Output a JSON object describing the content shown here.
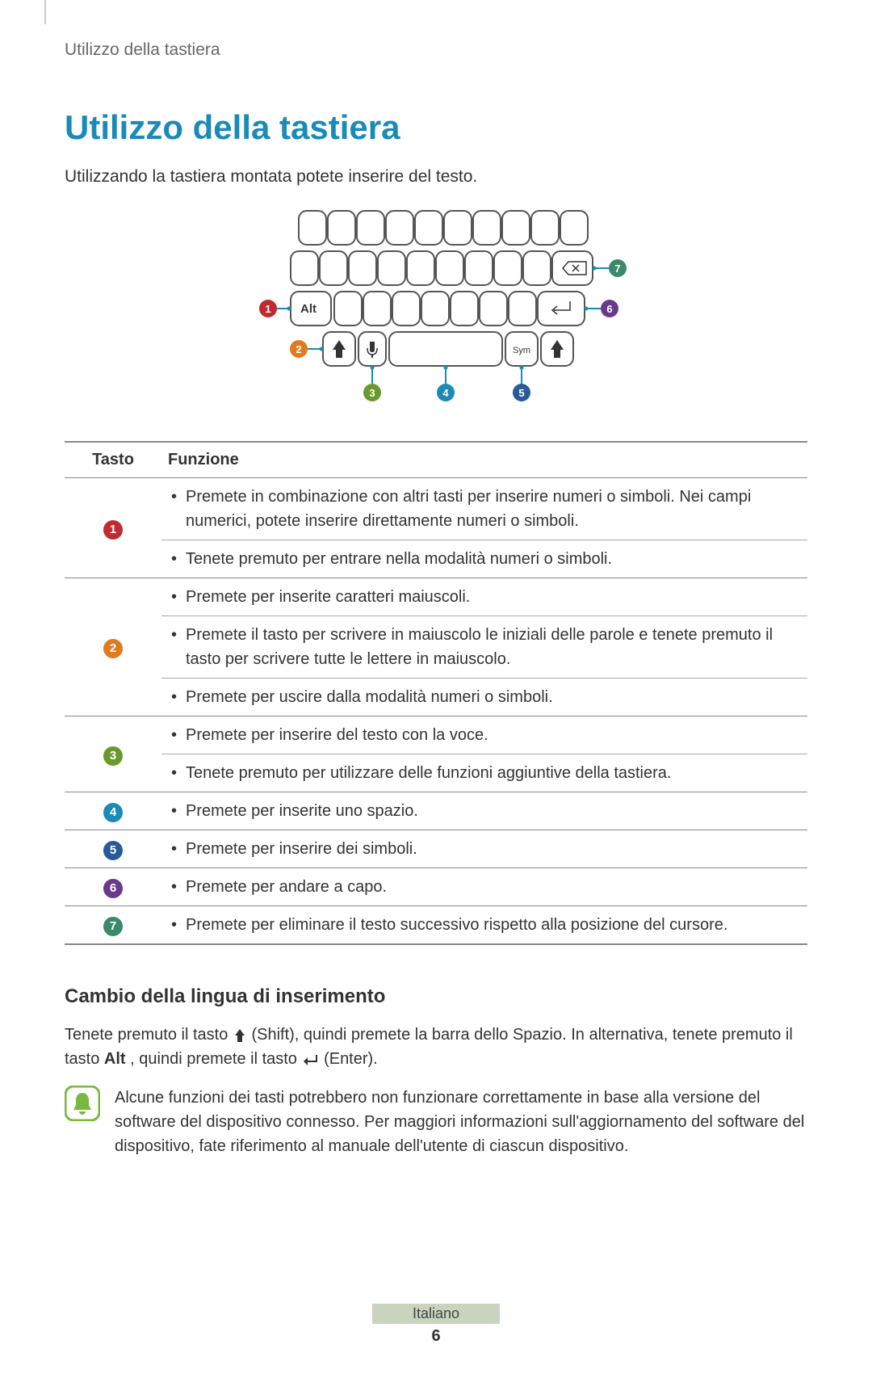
{
  "header": {
    "breadcrumb": "Utilizzo della tastiera"
  },
  "title": "Utilizzo della tastiera",
  "intro": "Utilizzando la tastiera montata potete inserire del testo.",
  "diagram": {
    "alt_label": "Alt",
    "sym_label": "Sym",
    "key_stroke": "#555555",
    "line_color": "#1a8ab8",
    "callouts": [
      {
        "n": 1,
        "color": "#c02a30"
      },
      {
        "n": 2,
        "color": "#e07a1e"
      },
      {
        "n": 3,
        "color": "#6a9a2d"
      },
      {
        "n": 4,
        "color": "#1a8ab8"
      },
      {
        "n": 5,
        "color": "#2a5a9a"
      },
      {
        "n": 6,
        "color": "#6a3a8a"
      },
      {
        "n": 7,
        "color": "#3a8a6a"
      }
    ]
  },
  "table": {
    "headers": {
      "key": "Tasto",
      "func": "Funzione"
    },
    "rows": [
      {
        "badge_n": "1",
        "badge_color": "#c02a30",
        "funcs": [
          "Premete in combinazione con altri tasti per inserire numeri o simboli. Nei campi numerici, potete inserire direttamente numeri o simboli.",
          "Tenete premuto per entrare nella modalità numeri o simboli."
        ]
      },
      {
        "badge_n": "2",
        "badge_color": "#e07a1e",
        "funcs": [
          "Premete per inserite caratteri maiuscoli.",
          "Premete il tasto per scrivere in maiuscolo le iniziali delle parole e tenete premuto il tasto per scrivere tutte le lettere in maiuscolo.",
          "Premete per uscire dalla modalità numeri o simboli."
        ]
      },
      {
        "badge_n": "3",
        "badge_color": "#6a9a2d",
        "funcs": [
          "Premete per inserire del testo con la voce.",
          "Tenete premuto per utilizzare delle funzioni aggiuntive della tastiera."
        ]
      },
      {
        "badge_n": "4",
        "badge_color": "#1a8ab8",
        "funcs": [
          "Premete per inserite uno spazio."
        ]
      },
      {
        "badge_n": "5",
        "badge_color": "#2a5a9a",
        "funcs": [
          "Premete per inserire dei simboli."
        ]
      },
      {
        "badge_n": "6",
        "badge_color": "#6a3a8a",
        "funcs": [
          "Premete per andare a capo."
        ]
      },
      {
        "badge_n": "7",
        "badge_color": "#3a8a6a",
        "funcs": [
          "Premete per eliminare il testo successivo rispetto alla posizione del cursore."
        ]
      }
    ]
  },
  "section2": {
    "title": "Cambio della lingua di inserimento",
    "para_pre": "Tenete premuto il tasto ",
    "shift_label": " (Shift), quindi premete la barra dello Spazio. In alternativa, tenete premuto il tasto ",
    "alt_word": "Alt",
    "mid": ", quindi premete il tasto ",
    "enter_label": " (Enter).",
    "note": "Alcune funzioni dei tasti potrebbero non funzionare correttamente in base alla versione del software del dispositivo connesso. Per maggiori informazioni sull'aggiornamento del software del dispositivo, fate riferimento al manuale dell'utente di ciascun dispositivo."
  },
  "footer": {
    "lang": "Italiano",
    "page": "6"
  },
  "note_icon": {
    "bg": "#7ab843",
    "bell": "#ffffff"
  }
}
